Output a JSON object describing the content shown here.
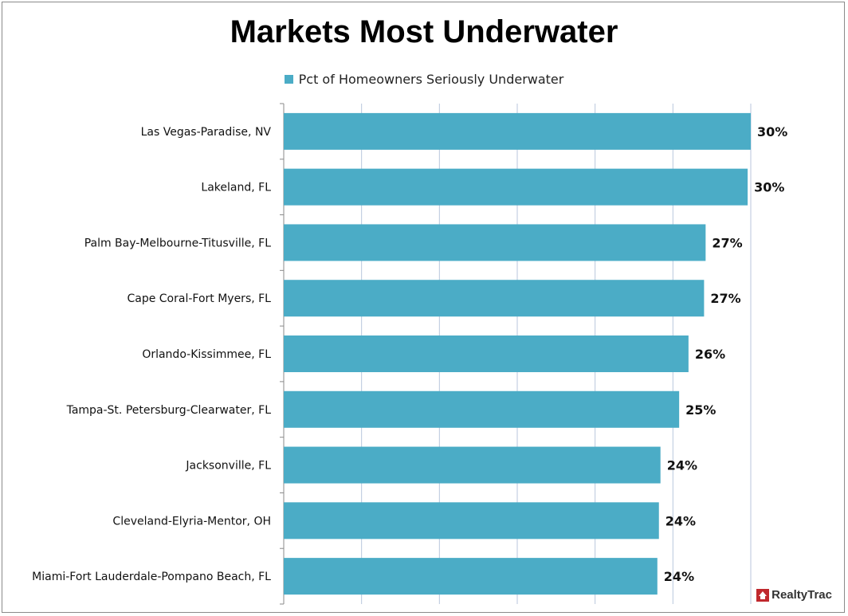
{
  "chart_data": {
    "type": "bar",
    "orientation": "horizontal",
    "title": "Markets Most Underwater",
    "series": [
      {
        "name": "Pct of Homeowners Seriously Underwater",
        "color": "#4bacc6",
        "values": [
          30,
          30,
          27,
          27,
          26,
          25,
          24,
          24,
          24
        ],
        "value_labels": [
          "30%",
          "30%",
          "27%",
          "27%",
          "26%",
          "25%",
          "24%",
          "24%",
          "24%"
        ]
      }
    ],
    "categories": [
      "Las Vegas-Paradise, NV",
      "Lakeland, FL",
      "Palm Bay-Melbourne-Titusville, FL",
      "Cape Coral-Fort Myers, FL",
      "Orlando-Kissimmee, FL",
      "Tampa-St. Petersburg-Clearwater, FL",
      "Jacksonville, FL",
      "Cleveland-Elyria-Mentor, OH",
      "Miami-Fort Lauderdale-Pompano Beach, FL"
    ],
    "value_precise": [
      30.0,
      29.8,
      27.1,
      27.0,
      26.0,
      25.4,
      24.2,
      24.1,
      24.0
    ],
    "xlim": [
      0,
      30
    ],
    "grid": true,
    "legend_position": "top",
    "xlabel": "",
    "ylabel": ""
  },
  "logo": {
    "text": "RealtyTrac",
    "color": "#c0282d"
  }
}
